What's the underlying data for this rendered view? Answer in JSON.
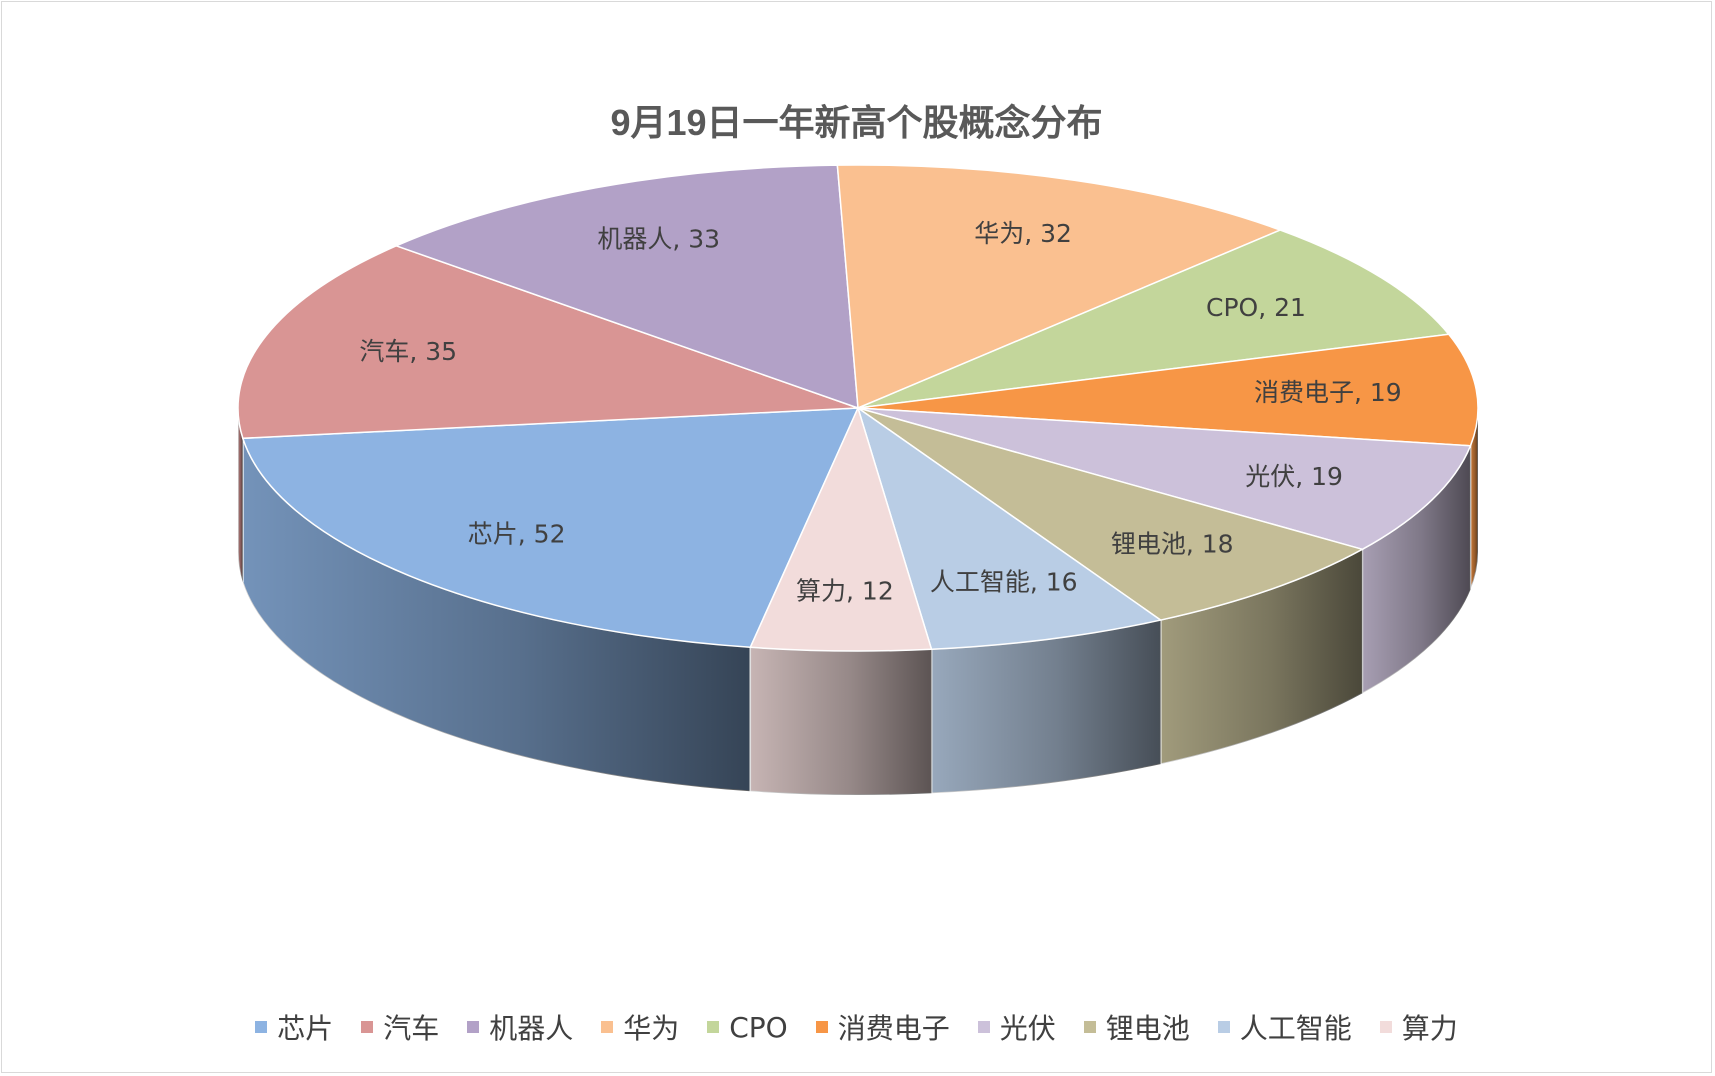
{
  "chart_data": {
    "type": "pie",
    "title": "9月19日一年新高个股概念分布",
    "legend_position": "bottom",
    "data_label_format": "{name}, {value}",
    "slices": [
      {
        "name": "芯片",
        "value": 52,
        "color": "#8DB3E2"
      },
      {
        "name": "汽车",
        "value": 35,
        "color": "#D99594"
      },
      {
        "name": "机器人",
        "value": 33,
        "color": "#B2A1C7"
      },
      {
        "name": "华为",
        "value": 32,
        "color": "#FAC090"
      },
      {
        "name": "CPO",
        "value": 21,
        "color": "#C3D69B"
      },
      {
        "name": "消费电子",
        "value": 19,
        "color": "#F79646"
      },
      {
        "name": "光伏",
        "value": 19,
        "color": "#CCC1DA"
      },
      {
        "name": "锂电池",
        "value": 18,
        "color": "#C4BD97"
      },
      {
        "name": "人工智能",
        "value": 16,
        "color": "#B9CDE5"
      },
      {
        "name": "算力",
        "value": 12,
        "color": "#F2DCDB"
      }
    ]
  }
}
